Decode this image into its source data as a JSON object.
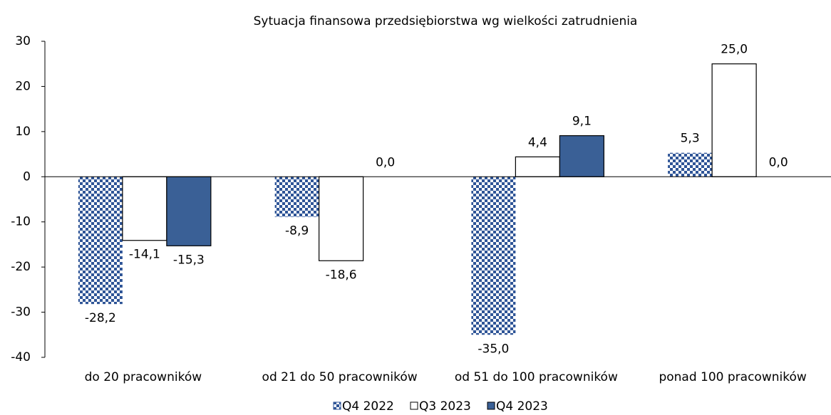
{
  "chart_data": {
    "type": "bar",
    "title": "Sytuacja finansowa przedsiębiorstwa wg wielkości zatrudnienia",
    "categories": [
      "do 20 pracowników",
      "od 21 do 50 pracowników",
      "od 51 do 100 pracowników",
      "ponad 100 pracowników"
    ],
    "series": [
      {
        "name": "Q4 2022",
        "color": "#2f5597",
        "pattern": "checkered",
        "values": [
          -28.2,
          -8.9,
          -35.0,
          5.3
        ],
        "value_labels": [
          "-28,2",
          "-8,9",
          "-35,0",
          "5,3"
        ]
      },
      {
        "name": "Q3 2023",
        "color": "#ffffff",
        "values": [
          -14.1,
          -18.6,
          4.4,
          25.0
        ],
        "value_labels": [
          "-14,1",
          "-18,6",
          "4,4",
          "25,0"
        ]
      },
      {
        "name": "Q4 2023",
        "color": "#3a6096",
        "values": [
          -15.3,
          0.0,
          9.1,
          0.0
        ],
        "value_labels": [
          "-15,3",
          "0,0",
          "9,1",
          "0,0"
        ]
      }
    ],
    "ylim": [
      -40,
      30
    ],
    "yticks": [
      -40,
      -30,
      -20,
      -10,
      0,
      10,
      20,
      30
    ],
    "grid": false,
    "legend": "bottom"
  }
}
